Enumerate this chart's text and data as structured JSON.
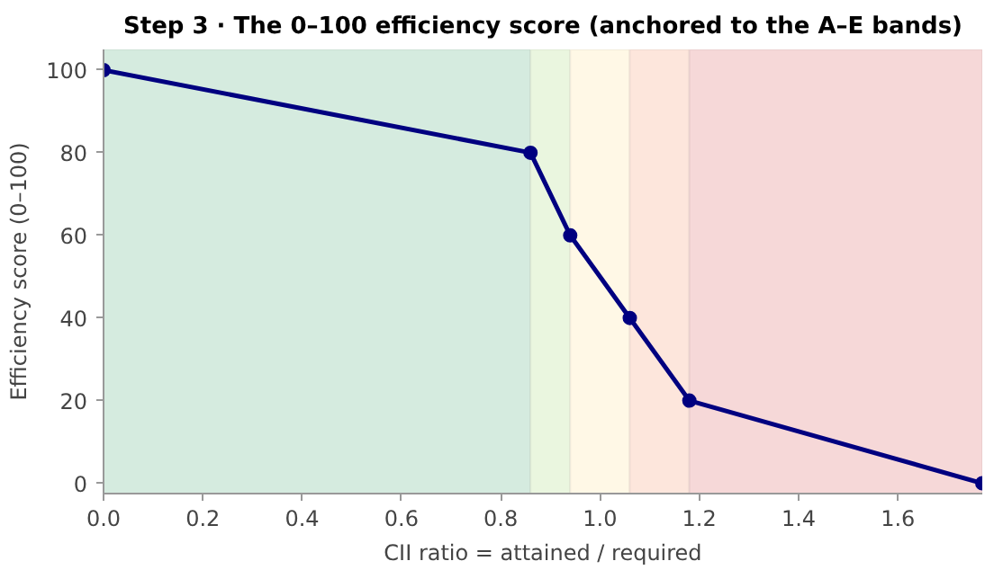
{
  "chart_data": {
    "type": "line",
    "title": "Step 3 · The 0–100 efficiency score (anchored to the A–E bands)",
    "xlabel": "CII ratio = attained / required",
    "ylabel": "Efficiency score (0–100)",
    "x": [
      0,
      0.86,
      0.94,
      1.06,
      1.18,
      1.77
    ],
    "series": [
      {
        "color": "#000080",
        "values": [
          100,
          80,
          60,
          40,
          20,
          0
        ]
      }
    ],
    "xlim": [
      0,
      1.77
    ],
    "ylim": [
      -2.5,
      105
    ],
    "xticks": [
      {
        "value": 0,
        "label": "0.0"
      },
      0.2,
      0.4,
      0.6,
      0.8,
      {
        "value": 1,
        "label": "1.0"
      },
      1.2,
      1.4,
      1.6
    ],
    "yticks": [
      0,
      20,
      40,
      60,
      80,
      100
    ],
    "bands": [
      {
        "axis": "x",
        "from": 0,
        "to": 0.86,
        "color": "#d5ebdf"
      },
      {
        "axis": "x",
        "from": 0.86,
        "to": 0.94,
        "color": "#eaf6df"
      },
      {
        "axis": "x",
        "from": 0.94,
        "to": 1.06,
        "color": "#fff8e6"
      },
      {
        "axis": "x",
        "from": 1.06,
        "to": 1.18,
        "color": "#fde6dc"
      },
      {
        "axis": "x",
        "from": 1.18,
        "to": 1.77,
        "color": "#f6d8d8"
      }
    ],
    "marker": "circle",
    "line_style": "solid"
  }
}
